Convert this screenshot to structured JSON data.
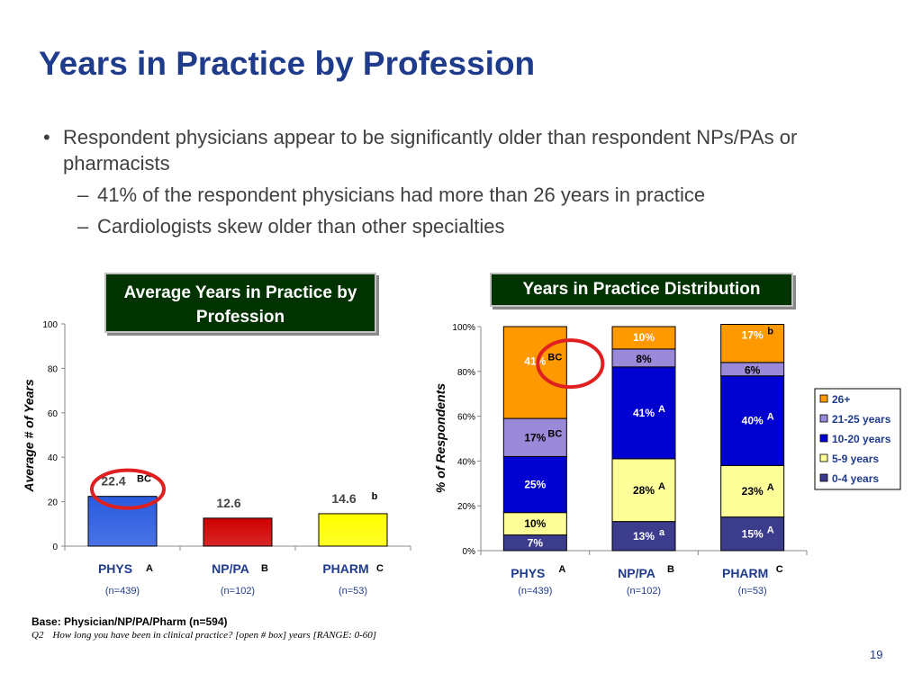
{
  "title": "Years in Practice by Profession",
  "bullets": {
    "main": "Respondent physicians appear to be significantly older than respondent NPs/PAs or pharmacists",
    "subs": [
      "41% of the respondent physicians had more than 26 years in practice",
      "Cardiologists skew older than other specialties"
    ]
  },
  "badges": {
    "left": "Average Years in Practice by Profession",
    "right": "Years in Practice Distribution"
  },
  "colors": {
    "title": "#1f3b8c",
    "badge_bg": "#003300",
    "highlight_circle": "#e02020"
  },
  "chart_data": [
    {
      "type": "bar",
      "title": "Average Years in Practice by Profession",
      "ylabel": "Average # of Years",
      "ylim": [
        0,
        100
      ],
      "yticks": [
        0,
        20,
        40,
        60,
        80,
        100
      ],
      "categories": [
        "PHYS",
        "NP/PA",
        "PHARM"
      ],
      "category_letters": [
        "A",
        "B",
        "C"
      ],
      "sample_sizes": [
        "(n=439)",
        "(n=102)",
        "(n=53)"
      ],
      "values": [
        22.4,
        12.6,
        14.6
      ],
      "value_labels": [
        "22.4",
        "12.6",
        "14.6"
      ],
      "sig_letters": [
        "BC",
        "",
        "b"
      ],
      "bar_colors": [
        "#2a5be0",
        "#d00000",
        "#ffff00"
      ],
      "highlight": "PHYS"
    },
    {
      "type": "bar",
      "stacked": true,
      "title": "Years in Practice Distribution",
      "ylabel": "% of Respondents",
      "ylim": [
        0,
        100
      ],
      "yticks": [
        "0%",
        "20%",
        "40%",
        "60%",
        "80%",
        "100%"
      ],
      "categories": [
        "PHYS",
        "NP/PA",
        "PHARM"
      ],
      "category_letters": [
        "A",
        "B",
        "C"
      ],
      "sample_sizes": [
        "(n=439)",
        "(n=102)",
        "(n=53)"
      ],
      "legend_position": "right",
      "series": [
        {
          "name": "0-4 years",
          "color": "#3c3c8c",
          "values": [
            7,
            13,
            15
          ],
          "labels": [
            "7%",
            "13%",
            "15%"
          ],
          "sig": [
            "",
            "a",
            "A"
          ]
        },
        {
          "name": "5-9 years",
          "color": "#ffff99",
          "values": [
            10,
            28,
            23
          ],
          "labels": [
            "10%",
            "28%",
            "23%"
          ],
          "sig": [
            "",
            "A",
            "A"
          ]
        },
        {
          "name": "10-20 years",
          "color": "#0000d0",
          "values": [
            25,
            41,
            40
          ],
          "labels": [
            "25%",
            "41%",
            "40%"
          ],
          "sig": [
            "",
            "A",
            "A"
          ]
        },
        {
          "name": "21-25 years",
          "color": "#9a88d8",
          "values": [
            17,
            8,
            6
          ],
          "labels": [
            "17%",
            "8%",
            "6%"
          ],
          "sig": [
            "BC",
            "",
            ""
          ]
        },
        {
          "name": "26+",
          "color": "#ff9900",
          "values": [
            41,
            10,
            17
          ],
          "labels": [
            "41%",
            "10%",
            "17%"
          ],
          "sig": [
            "BC",
            "",
            "b"
          ]
        }
      ],
      "legend_order": [
        "26+",
        "21-25 years",
        "10-20 years",
        "5-9 years",
        "0-4 years"
      ],
      "highlight": "PHYS 26+"
    }
  ],
  "footer": {
    "base": "Base: Physician/NP/PA/Pharm (n=594)",
    "question_number": "Q2",
    "question": "How long you have been in clinical practice? [open # box] years [RANGE: 0-60]",
    "page": "19"
  }
}
